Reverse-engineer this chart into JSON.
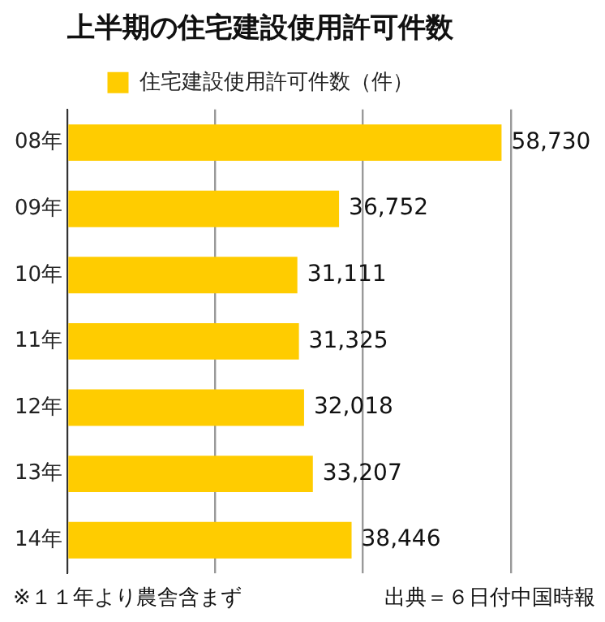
{
  "chart_data": {
    "type": "bar",
    "orientation": "horizontal",
    "title": "上半期の住宅建設使用許可件数",
    "categories": [
      "08年",
      "09年",
      "10年",
      "11年",
      "12年",
      "13年",
      "14年"
    ],
    "series": [
      {
        "name": "住宅建設使用許可件数（件）",
        "color": "#ffcc00",
        "values": [
          58730,
          36752,
          31111,
          31325,
          32018,
          33207,
          38446
        ],
        "value_labels": [
          "58,730",
          "36,752",
          "31,111",
          "31,325",
          "32,018",
          "33,207",
          "38,446"
        ]
      }
    ],
    "xlim": [
      0,
      60000
    ],
    "xticks": [
      {
        "value": 0,
        "label": null
      },
      {
        "value": 20000,
        "label": null
      },
      {
        "value": 40000,
        "label": null
      },
      {
        "value": 60000,
        "label": null
      }
    ],
    "tick_labels": "y",
    "grid": "x",
    "legend": "top",
    "annotations": [
      "※１１年より農舎含まず",
      "出典＝６日付中国時報"
    ]
  }
}
